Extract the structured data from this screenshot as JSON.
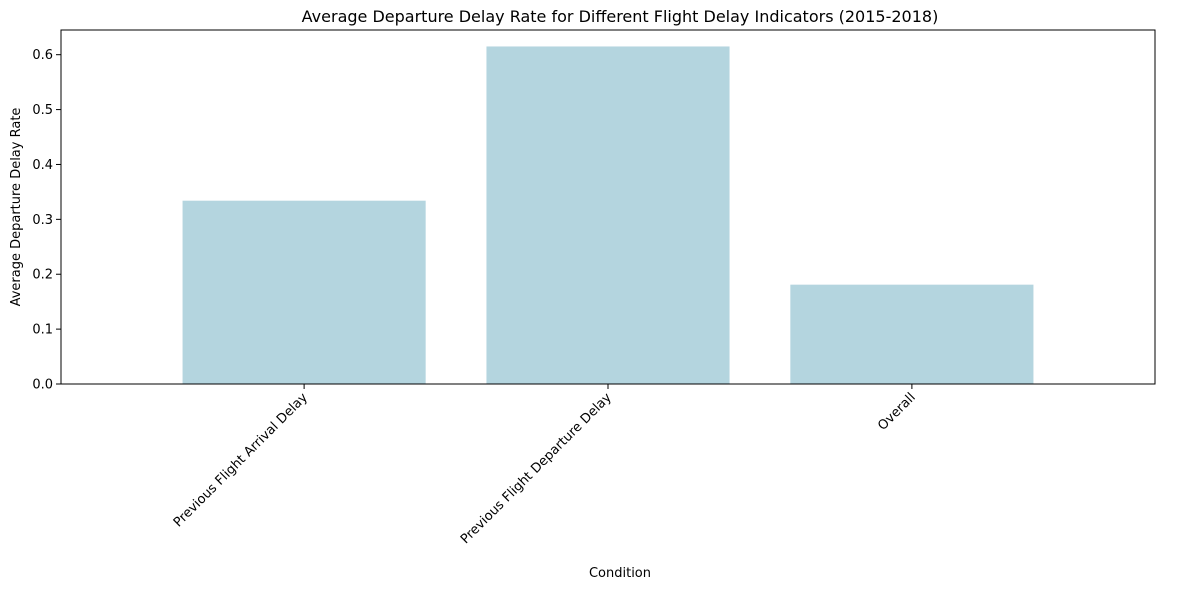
{
  "chart_data": {
    "type": "bar",
    "title": "Average Departure Delay Rate for Different Flight Delay Indicators (2015-2018)",
    "xlabel": "Condition",
    "ylabel": "Average Departure Delay Rate",
    "categories": [
      "Previous Flight Arrival Delay",
      "Previous Flight Departure Delay",
      "Overall"
    ],
    "values": [
      0.334,
      0.615,
      0.181
    ],
    "ylim": [
      0,
      0.645
    ],
    "yticks": [
      "0.0",
      "0.1",
      "0.2",
      "0.3",
      "0.4",
      "0.5",
      "0.6"
    ],
    "bar_color": "#b4d5df",
    "grid": false,
    "legend": "none"
  }
}
